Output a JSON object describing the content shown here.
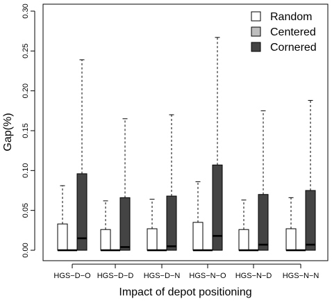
{
  "chart_data": {
    "type": "boxplot",
    "xlabel": "Impact of depot positioning",
    "ylabel": "Gap(%)",
    "ylim": [
      0,
      0.3
    ],
    "yticks": [
      0.0,
      0.05,
      0.1,
      0.15,
      0.2,
      0.25,
      0.3
    ],
    "ytick_labels": [
      "0.00",
      "0.05",
      "0.10",
      "0.15",
      "0.20",
      "0.25",
      "0.30"
    ],
    "categories": [
      "HGS−D−O",
      "HGS−D−D",
      "HGS−D−N",
      "HGS−N−O",
      "HGS−N−D",
      "HGS−N−N"
    ],
    "legend": {
      "position": "top-right"
    },
    "series": [
      {
        "name": "Random",
        "color": "#ffffff",
        "boxes": [
          {
            "min": 0,
            "q1": 0,
            "median": 0,
            "q3": 0.033,
            "max": 0.081
          },
          {
            "min": 0,
            "q1": 0,
            "median": 0,
            "q3": 0.026,
            "max": 0.062
          },
          {
            "min": 0,
            "q1": 0,
            "median": 0,
            "q3": 0.027,
            "max": 0.064
          },
          {
            "min": 0,
            "q1": 0,
            "median": 0,
            "q3": 0.035,
            "max": 0.086
          },
          {
            "min": 0,
            "q1": 0,
            "median": 0,
            "q3": 0.026,
            "max": 0.063
          },
          {
            "min": 0,
            "q1": 0,
            "median": 0,
            "q3": 0.027,
            "max": 0.066
          }
        ]
      },
      {
        "name": "Centered",
        "color": "#bebebe",
        "boxes": [
          {
            "min": 0,
            "q1": 0,
            "median": 0,
            "q3": 0,
            "max": 0
          },
          {
            "min": 0,
            "q1": 0,
            "median": 0,
            "q3": 0,
            "max": 0
          },
          {
            "min": 0,
            "q1": 0,
            "median": 0,
            "q3": 0,
            "max": 0
          },
          {
            "min": 0,
            "q1": 0,
            "median": 0,
            "q3": 0,
            "max": 0
          },
          {
            "min": 0,
            "q1": 0,
            "median": 0,
            "q3": 0,
            "max": 0
          },
          {
            "min": 0,
            "q1": 0,
            "median": 0,
            "q3": 0,
            "max": 0
          }
        ]
      },
      {
        "name": "Cornered",
        "color": "#444444",
        "boxes": [
          {
            "min": 0,
            "q1": 0,
            "median": 0.015,
            "q3": 0.096,
            "max": 0.239
          },
          {
            "min": 0,
            "q1": 0,
            "median": 0.004,
            "q3": 0.066,
            "max": 0.165
          },
          {
            "min": 0,
            "q1": 0,
            "median": 0.005,
            "q3": 0.068,
            "max": 0.17
          },
          {
            "min": 0,
            "q1": 0,
            "median": 0.018,
            "q3": 0.107,
            "max": 0.267
          },
          {
            "min": 0,
            "q1": 0,
            "median": 0.007,
            "q3": 0.07,
            "max": 0.175
          },
          {
            "min": 0,
            "q1": 0,
            "median": 0.007,
            "q3": 0.075,
            "max": 0.188
          }
        ]
      }
    ]
  }
}
